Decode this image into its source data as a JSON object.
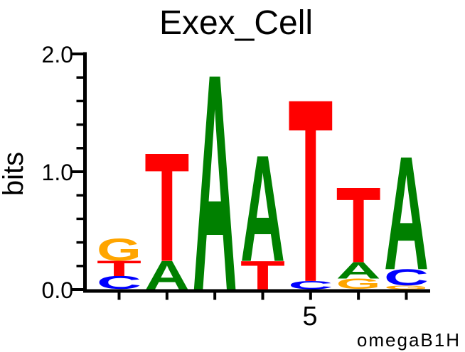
{
  "figure": {
    "title": "Exex_Cell",
    "ylabel": "bits",
    "fineprint": "omegaB1H",
    "x_tick_label": "5"
  },
  "chart_data": {
    "type": "bar",
    "subtype": "sequence_logo",
    "title": "Exex_Cell",
    "xlabel": "",
    "ylabel": "bits",
    "ylim": [
      0,
      2
    ],
    "ytick_values": [
      0.0,
      1.0,
      2.0
    ],
    "ytick_labels": [
      "0.0",
      "1.0",
      "2.0"
    ],
    "y_minor_tick_step": 0.2,
    "x_labeled_tick": {
      "position": 5,
      "label": "5"
    },
    "num_positions": 7,
    "fineprint": "omegaB1H",
    "legend": "none",
    "grid": false,
    "alphabet_colors": {
      "A": "#008000",
      "C": "#0000FF",
      "G": "#FFA500",
      "T": "#FF0000"
    },
    "positions": [
      {
        "index": 1,
        "stack": [
          {
            "base": "C",
            "bits": 0.11
          },
          {
            "base": "T",
            "bits": 0.13
          },
          {
            "base": "G",
            "bits": 0.19
          }
        ]
      },
      {
        "index": 2,
        "stack": [
          {
            "base": "A",
            "bits": 0.24
          },
          {
            "base": "T",
            "bits": 0.91
          }
        ]
      },
      {
        "index": 3,
        "stack": [
          {
            "base": "A",
            "bits": 1.81
          }
        ]
      },
      {
        "index": 4,
        "stack": [
          {
            "base": "T",
            "bits": 0.24
          },
          {
            "base": "A",
            "bits": 0.89
          }
        ]
      },
      {
        "index": 5,
        "stack": [
          {
            "base": "C",
            "bits": 0.07
          },
          {
            "base": "T",
            "bits": 1.53
          }
        ]
      },
      {
        "index": 6,
        "stack": [
          {
            "base": "G",
            "bits": 0.09
          },
          {
            "base": "A",
            "bits": 0.14
          },
          {
            "base": "T",
            "bits": 0.63
          }
        ]
      },
      {
        "index": 7,
        "stack": [
          {
            "base": "G",
            "bits": 0.03
          },
          {
            "base": "C",
            "bits": 0.14
          },
          {
            "base": "A",
            "bits": 0.95
          }
        ]
      }
    ]
  }
}
